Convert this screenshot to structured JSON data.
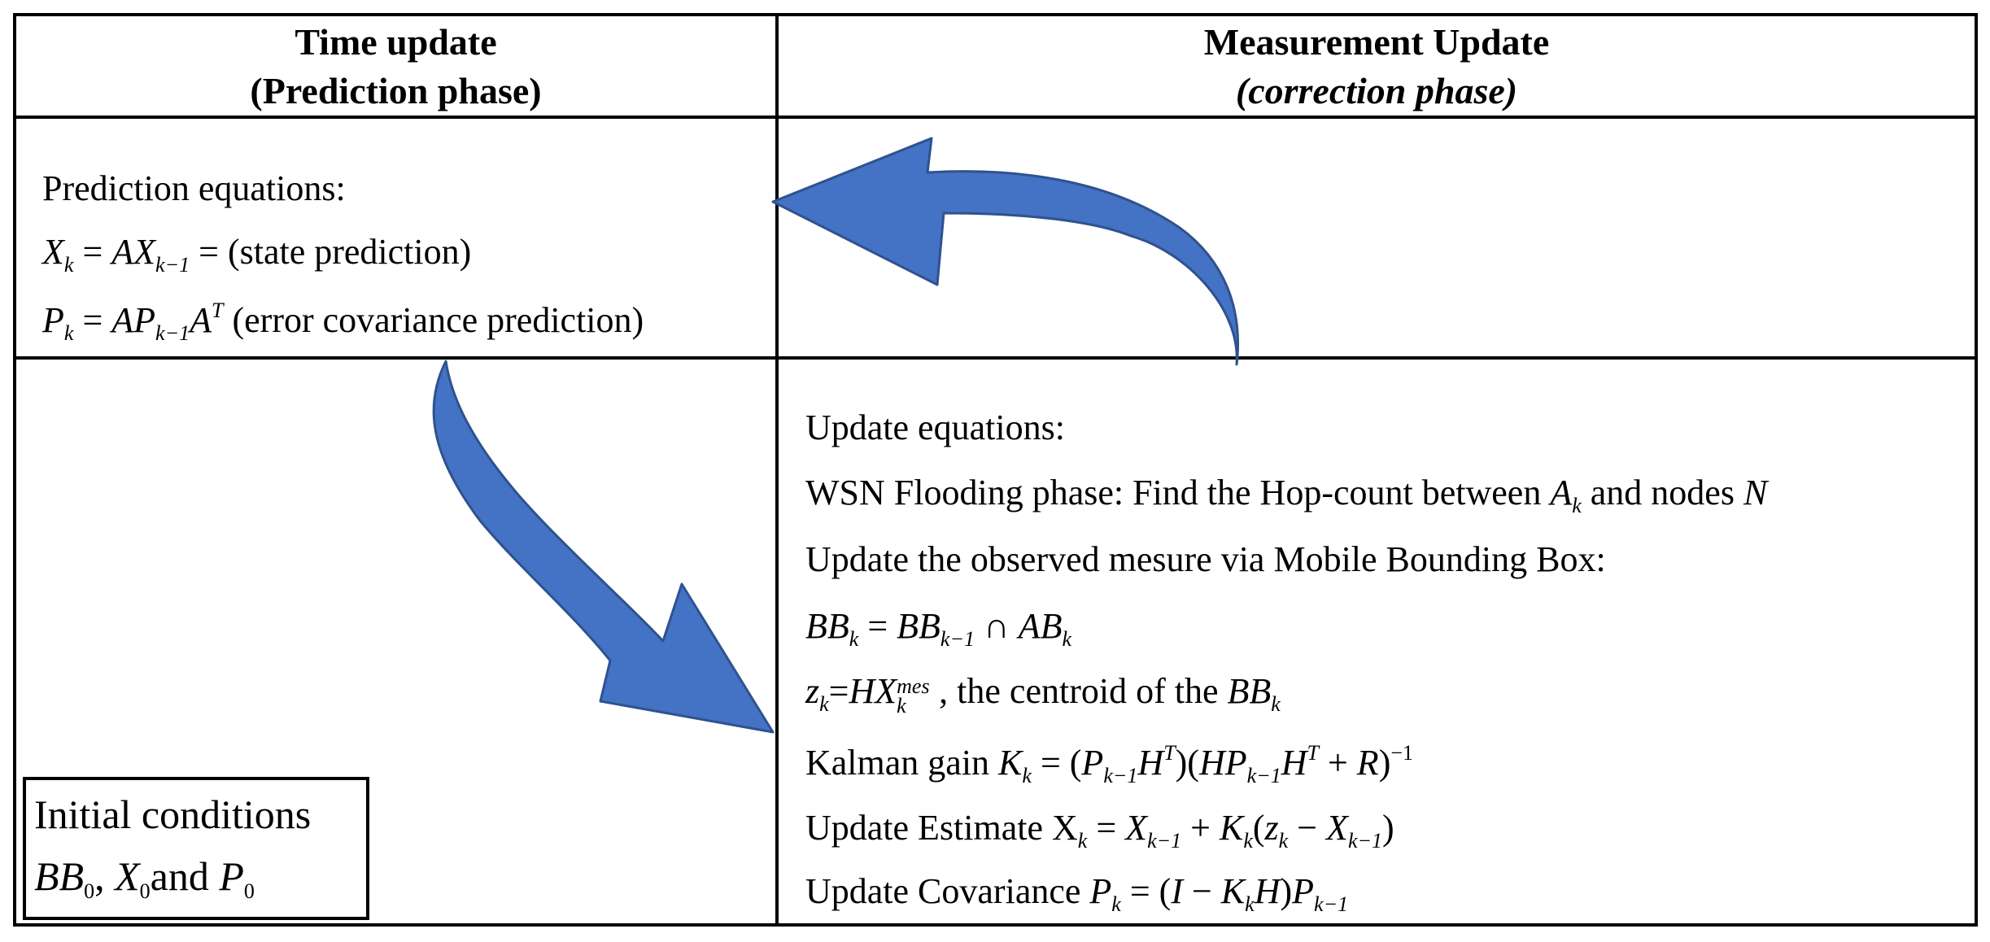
{
  "header": {
    "left_title": "Time update",
    "left_subtitle": "(Prediction phase)",
    "right_title": "Measurement Update",
    "right_subtitle": "(correction phase)"
  },
  "prediction": {
    "title": "Prediction equations:",
    "eq1_lhs": "X",
    "eq1_lhs_sub": "k",
    "eq1_rhs_a": "AX",
    "eq1_rhs_sub": "k−1",
    "eq1_note": "(state prediction)",
    "eq2_lhs": "P",
    "eq2_lhs_sub": "k",
    "eq2_rhs_a": "AP",
    "eq2_rhs_sub": "k−1",
    "eq2_rhs_b": "A",
    "eq2_rhs_sup": "T",
    "eq2_note": "(error covariance prediction)"
  },
  "update": {
    "title": "Update equations:",
    "flooding_text": "WSN Flooding phase: Find the Hop-count between",
    "flooding_var": "A",
    "flooding_var_sub": "k",
    "flooding_tail": "and nodes",
    "flooding_nodes": "N",
    "observed_text": "Update the observed mesure via Mobile Bounding Box:",
    "bb_lhs": "BB",
    "bb_lhs_sub": "k",
    "bb_r1": "BB",
    "bb_r1_sub": "k−1",
    "bb_op": "∩",
    "bb_r2": "AB",
    "bb_r2_sub": "k",
    "z_lhs": "z",
    "z_lhs_sub": "k",
    "z_rhs": "HX",
    "z_rhs_sub": "k",
    "z_rhs_sup": "mes",
    "z_text": ",  the centroid of the",
    "z_bb": "BB",
    "z_bb_sub": "k",
    "gain_label": "Kalman gain",
    "gain_lhs": "K",
    "gain_lhs_sub": "k",
    "estimate_label": "Update Estimate",
    "covariance_label": "Update Covariance"
  },
  "initial": {
    "title": "Initial conditions",
    "bb": "BB",
    "x": "X",
    "p": "P",
    "sub0": "0",
    "and": "and"
  },
  "colors": {
    "arrow_fill": "#4472C4",
    "arrow_stroke": "#2F528F",
    "border": "#000000"
  }
}
